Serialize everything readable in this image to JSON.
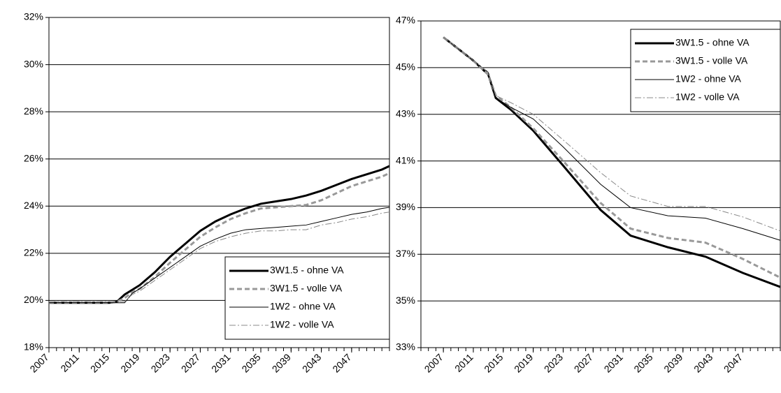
{
  "chart_data": [
    {
      "type": "line",
      "x": [
        2007,
        2010,
        2013,
        2015,
        2016,
        2017,
        2018,
        2019,
        2021,
        2023,
        2025,
        2027,
        2029,
        2031,
        2033,
        2035,
        2037,
        2039,
        2041,
        2043,
        2045,
        2047,
        2049,
        2051,
        2052
      ],
      "xlim": [
        2007,
        2052
      ],
      "xticks": [
        2007,
        2011,
        2015,
        2019,
        2023,
        2027,
        2031,
        2035,
        2039,
        2043,
        2047
      ],
      "ylim": [
        18,
        32
      ],
      "yticks": [
        {
          "value": 18,
          "label": "18%"
        },
        {
          "value": 20,
          "label": "20%"
        },
        {
          "value": 22,
          "label": "22%"
        },
        {
          "value": 24,
          "label": "24%"
        },
        {
          "value": 26,
          "label": "26%"
        },
        {
          "value": 28,
          "label": "28%"
        },
        {
          "value": 30,
          "label": "30%"
        },
        {
          "value": 32,
          "label": "32%"
        }
      ],
      "grid": true,
      "legend": "lower right",
      "series": [
        {
          "name": "3W1.5 - ohne VA",
          "color": "#000000",
          "dash": "solid",
          "width": 3,
          "values": [
            19.9,
            19.9,
            19.9,
            19.9,
            19.95,
            20.25,
            20.45,
            20.65,
            21.2,
            21.85,
            22.4,
            22.95,
            23.35,
            23.65,
            23.9,
            24.1,
            24.2,
            24.3,
            24.45,
            24.65,
            24.9,
            25.15,
            25.35,
            25.55,
            25.7
          ]
        },
        {
          "name": "3W1.5 - volle VA",
          "color": "#999999",
          "dash": "dashed",
          "width": 3,
          "values": [
            19.9,
            19.9,
            19.9,
            19.9,
            19.95,
            20.1,
            20.35,
            20.5,
            21.0,
            21.6,
            22.15,
            22.7,
            23.1,
            23.45,
            23.7,
            23.9,
            23.95,
            24.0,
            24.05,
            24.25,
            24.55,
            24.85,
            25.05,
            25.25,
            25.4
          ]
        },
        {
          "name": "1W2 - ohne VA",
          "color": "#000000",
          "dash": "solid",
          "width": 1,
          "values": [
            19.9,
            19.9,
            19.9,
            19.9,
            19.9,
            19.9,
            20.3,
            20.5,
            20.95,
            21.4,
            21.85,
            22.3,
            22.6,
            22.85,
            23.0,
            23.05,
            23.1,
            23.15,
            23.2,
            23.35,
            23.5,
            23.65,
            23.75,
            23.9,
            23.95
          ]
        },
        {
          "name": "1W2 - volle VA",
          "color": "#888888",
          "dash": "dashdot",
          "width": 1,
          "values": [
            19.95,
            19.95,
            19.95,
            19.95,
            19.95,
            19.95,
            20.25,
            20.4,
            20.85,
            21.3,
            21.75,
            22.2,
            22.5,
            22.7,
            22.85,
            22.95,
            22.95,
            23.0,
            23.0,
            23.2,
            23.3,
            23.45,
            23.55,
            23.7,
            23.75
          ]
        }
      ]
    },
    {
      "type": "line",
      "x": [
        2007,
        2009,
        2011,
        2013,
        2014,
        2016,
        2019,
        2023,
        2028,
        2032,
        2037,
        2042,
        2047,
        2052
      ],
      "xlim": [
        2004,
        2052
      ],
      "xticks": [
        2007,
        2011,
        2015,
        2019,
        2023,
        2027,
        2031,
        2035,
        2039,
        2043,
        2047
      ],
      "ylim": [
        33,
        47
      ],
      "yticks": [
        {
          "value": 33,
          "label": "33%"
        },
        {
          "value": 35,
          "label": "35%"
        },
        {
          "value": 37,
          "label": "37%"
        },
        {
          "value": 39,
          "label": "39%"
        },
        {
          "value": 41,
          "label": "41%"
        },
        {
          "value": 43,
          "label": "43%"
        },
        {
          "value": 45,
          "label": "45%"
        },
        {
          "value": 47,
          "label": "47%"
        }
      ],
      "grid": true,
      "legend": "upper right",
      "series": [
        {
          "name": "3W1.5 - ohne VA",
          "color": "#000000",
          "dash": "solid",
          "width": 3,
          "values": [
            46.3,
            45.8,
            45.3,
            44.7,
            43.7,
            43.2,
            42.3,
            40.8,
            38.9,
            37.8,
            37.3,
            36.9,
            36.2,
            35.6
          ]
        },
        {
          "name": "3W1.5 - volle VA",
          "color": "#999999",
          "dash": "dashed",
          "width": 3,
          "values": [
            46.3,
            45.8,
            45.3,
            44.7,
            43.8,
            43.3,
            42.4,
            41.0,
            39.2,
            38.1,
            37.7,
            37.5,
            36.8,
            36.0
          ]
        },
        {
          "name": "1W2 - ohne VA",
          "color": "#000000",
          "dash": "solid",
          "width": 1,
          "values": [
            46.3,
            45.8,
            45.3,
            44.8,
            43.7,
            43.3,
            42.8,
            41.6,
            40.0,
            39.0,
            38.65,
            38.55,
            38.1,
            37.6
          ]
        },
        {
          "name": "1W2 - volle VA",
          "color": "#888888",
          "dash": "dashdot",
          "width": 1,
          "values": [
            46.3,
            45.8,
            45.3,
            44.8,
            43.8,
            43.5,
            43.0,
            41.9,
            40.5,
            39.5,
            39.05,
            39.05,
            38.6,
            38.0
          ]
        }
      ]
    }
  ]
}
